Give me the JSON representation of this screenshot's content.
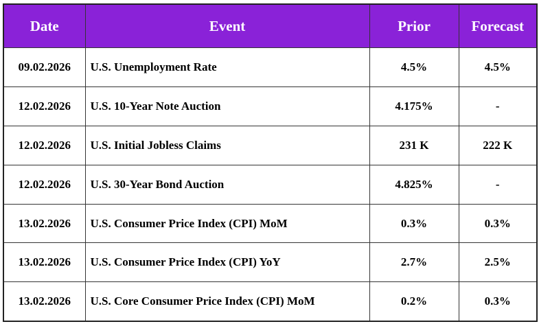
{
  "table": {
    "header": [
      "Date",
      "Event",
      "Prior",
      "Forecast"
    ],
    "rows": [
      [
        "09.02.2026",
        "U.S. Unemployment Rate",
        "4.5%",
        "4.5%"
      ],
      [
        "12.02.2026",
        "U.S. 10-Year Note Auction",
        "4.175%",
        "-"
      ],
      [
        "12.02.2026",
        "U.S. Initial Jobless Claims",
        "231 K",
        "222 K"
      ],
      [
        "12.02.2026",
        "U.S. 30-Year Bond Auction",
        "4.825%",
        "-"
      ],
      [
        "13.02.2026",
        "U.S. Consumer Price Index (CPI) MoM",
        "0.3%",
        "0.3%"
      ],
      [
        "13.02.2026",
        "U.S. Consumer Price Index (CPI) YoY",
        "2.7%",
        "2.5%"
      ],
      [
        "13.02.2026",
        "U.S. Core Consumer Price Index (CPI) MoM",
        "0.2%",
        "0.3%"
      ]
    ]
  }
}
